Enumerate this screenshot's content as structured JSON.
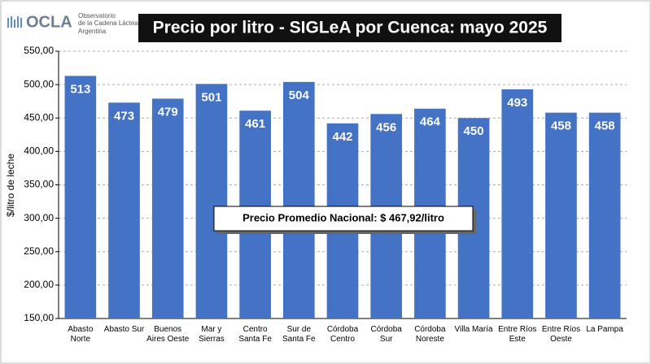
{
  "header": {
    "logo": "OCLA",
    "org_line1": "Observatorio",
    "org_line2": "de la Cadena Láctea",
    "org_line3": "Argentina"
  },
  "chart_data": {
    "type": "bar",
    "title": "Precio por litro - SIGLeA por Cuenca: mayo 2025",
    "y_label": "$/litro de leche",
    "annotation": "Precio Promedio Nacional: $ 467,92/litro",
    "categories": [
      "Abasto Norte",
      "Abasto Sur",
      "Buenos Aires Oeste",
      "Mar y Sierras",
      "Centro Santa Fe",
      "Sur de Santa Fe",
      "Córdoba Centro",
      "Córdoba Sur",
      "Córdoba Noreste",
      "Villa María",
      "Entre Ríos Este",
      "Entre Ríos Oeste",
      "La Pampa"
    ],
    "values": [
      513,
      473,
      479,
      501,
      461,
      504,
      442,
      456,
      464,
      450,
      493,
      458,
      458
    ],
    "color": "#4472c4",
    "ylim": [
      150,
      550
    ],
    "yticks": [
      {
        "value": 150,
        "label": "150,00"
      },
      {
        "value": 200,
        "label": "200,00"
      },
      {
        "value": 250,
        "label": "250,00"
      },
      {
        "value": 300,
        "label": "300,00"
      },
      {
        "value": 350,
        "label": "350,00"
      },
      {
        "value": 400,
        "label": "400,00"
      },
      {
        "value": 450,
        "label": "450,00"
      },
      {
        "value": 500,
        "label": "500,00"
      },
      {
        "value": 550,
        "label": "550,00"
      }
    ],
    "grid": true
  }
}
